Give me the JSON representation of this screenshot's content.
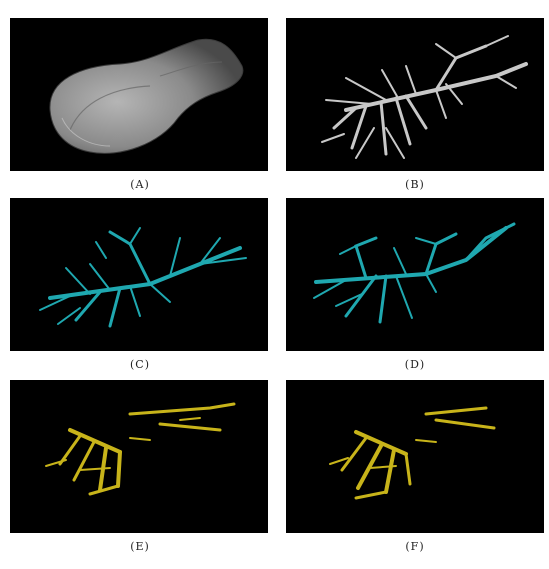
{
  "figure": {
    "panels": [
      {
        "label": "(A)",
        "subject": "liver-surface",
        "color": "#9a9a9a"
      },
      {
        "label": "(B)",
        "subject": "vessel-tree",
        "color": "#c8c8c8"
      },
      {
        "label": "(C)",
        "subject": "vessel-tree",
        "color": "#1fa8b0"
      },
      {
        "label": "(D)",
        "subject": "vessel-tree",
        "color": "#1fa8b0"
      },
      {
        "label": "(E)",
        "subject": "vessel-tree",
        "color": "#c8b41a"
      },
      {
        "label": "(F)",
        "subject": "vessel-tree",
        "color": "#c8b41a"
      }
    ]
  }
}
